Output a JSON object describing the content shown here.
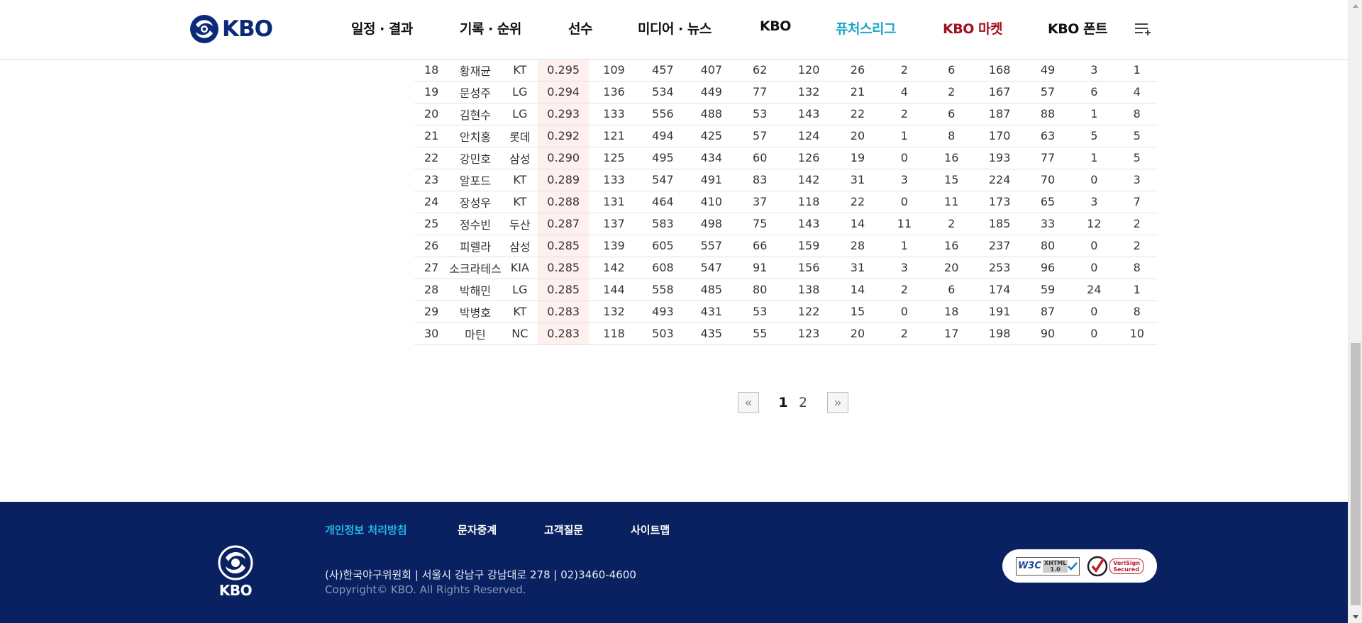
{
  "header": {
    "logo_text": "KBO",
    "nav": [
      {
        "label": "일정 · 결과"
      },
      {
        "label": "기록 · 순위"
      },
      {
        "label": "선수"
      },
      {
        "label": "미디어 · 뉴스"
      },
      {
        "label": "KBO"
      },
      {
        "label": "퓨처스리그"
      },
      {
        "label": "KBO 마켓"
      },
      {
        "label": "KBO 폰트"
      }
    ],
    "menu_icon": "menu-list-icon",
    "colors": {
      "futures": "#1aa5c9",
      "market": "#a0111d",
      "brand": "#0b2a78"
    }
  },
  "records": {
    "rows": [
      {
        "rank": "18",
        "name": "황재균",
        "team": "KT",
        "avg": "0.295",
        "g": "109",
        "pa": "457",
        "ab": "407",
        "r": "62",
        "h": "120",
        "b2": "26",
        "b3": "2",
        "hr": "6",
        "tb": "168",
        "rbi": "49",
        "sac": "3",
        "sf": "1"
      },
      {
        "rank": "19",
        "name": "문성주",
        "team": "LG",
        "avg": "0.294",
        "g": "136",
        "pa": "534",
        "ab": "449",
        "r": "77",
        "h": "132",
        "b2": "21",
        "b3": "4",
        "hr": "2",
        "tb": "167",
        "rbi": "57",
        "sac": "6",
        "sf": "4"
      },
      {
        "rank": "20",
        "name": "김현수",
        "team": "LG",
        "avg": "0.293",
        "g": "133",
        "pa": "556",
        "ab": "488",
        "r": "53",
        "h": "143",
        "b2": "22",
        "b3": "2",
        "hr": "6",
        "tb": "187",
        "rbi": "88",
        "sac": "1",
        "sf": "8"
      },
      {
        "rank": "21",
        "name": "안치홍",
        "team": "롯데",
        "avg": "0.292",
        "g": "121",
        "pa": "494",
        "ab": "425",
        "r": "57",
        "h": "124",
        "b2": "20",
        "b3": "1",
        "hr": "8",
        "tb": "170",
        "rbi": "63",
        "sac": "5",
        "sf": "5"
      },
      {
        "rank": "22",
        "name": "강민호",
        "team": "삼성",
        "avg": "0.290",
        "g": "125",
        "pa": "495",
        "ab": "434",
        "r": "60",
        "h": "126",
        "b2": "19",
        "b3": "0",
        "hr": "16",
        "tb": "193",
        "rbi": "77",
        "sac": "1",
        "sf": "5"
      },
      {
        "rank": "23",
        "name": "알포드",
        "team": "KT",
        "avg": "0.289",
        "g": "133",
        "pa": "547",
        "ab": "491",
        "r": "83",
        "h": "142",
        "b2": "31",
        "b3": "3",
        "hr": "15",
        "tb": "224",
        "rbi": "70",
        "sac": "0",
        "sf": "3"
      },
      {
        "rank": "24",
        "name": "장성우",
        "team": "KT",
        "avg": "0.288",
        "g": "131",
        "pa": "464",
        "ab": "410",
        "r": "37",
        "h": "118",
        "b2": "22",
        "b3": "0",
        "hr": "11",
        "tb": "173",
        "rbi": "65",
        "sac": "3",
        "sf": "7"
      },
      {
        "rank": "25",
        "name": "정수빈",
        "team": "두산",
        "avg": "0.287",
        "g": "137",
        "pa": "583",
        "ab": "498",
        "r": "75",
        "h": "143",
        "b2": "14",
        "b3": "11",
        "hr": "2",
        "tb": "185",
        "rbi": "33",
        "sac": "12",
        "sf": "2"
      },
      {
        "rank": "26",
        "name": "피렐라",
        "team": "삼성",
        "avg": "0.285",
        "g": "139",
        "pa": "605",
        "ab": "557",
        "r": "66",
        "h": "159",
        "b2": "28",
        "b3": "1",
        "hr": "16",
        "tb": "237",
        "rbi": "80",
        "sac": "0",
        "sf": "2"
      },
      {
        "rank": "27",
        "name": "소크라테스",
        "team": "KIA",
        "avg": "0.285",
        "g": "142",
        "pa": "608",
        "ab": "547",
        "r": "91",
        "h": "156",
        "b2": "31",
        "b3": "3",
        "hr": "20",
        "tb": "253",
        "rbi": "96",
        "sac": "0",
        "sf": "8"
      },
      {
        "rank": "28",
        "name": "박해민",
        "team": "LG",
        "avg": "0.285",
        "g": "144",
        "pa": "558",
        "ab": "485",
        "r": "80",
        "h": "138",
        "b2": "14",
        "b3": "2",
        "hr": "6",
        "tb": "174",
        "rbi": "59",
        "sac": "24",
        "sf": "1"
      },
      {
        "rank": "29",
        "name": "박병호",
        "team": "KT",
        "avg": "0.283",
        "g": "132",
        "pa": "493",
        "ab": "431",
        "r": "53",
        "h": "122",
        "b2": "15",
        "b3": "0",
        "hr": "18",
        "tb": "191",
        "rbi": "87",
        "sac": "0",
        "sf": "8"
      },
      {
        "rank": "30",
        "name": "마틴",
        "team": "NC",
        "avg": "0.283",
        "g": "118",
        "pa": "503",
        "ab": "435",
        "r": "55",
        "h": "123",
        "b2": "20",
        "b3": "2",
        "hr": "17",
        "tb": "198",
        "rbi": "90",
        "sac": "0",
        "sf": "10"
      }
    ],
    "avg_highlight_color": "#fdf0ee"
  },
  "pagination": {
    "prev_label": "«",
    "next_label": "»",
    "pages": [
      "1",
      "2"
    ],
    "current_page": "1"
  },
  "footer": {
    "links": [
      {
        "label": "개인정보 처리방침"
      },
      {
        "label": "문자중계"
      },
      {
        "label": "고객질문"
      },
      {
        "label": "사이트맵"
      }
    ],
    "logo_text": "KBO",
    "address": "(사)한국야구위원회 | 서울시 강남구 강남대로 278 | 02)3460-4600",
    "copyright": "Copyright© KBO. All Rights Reserved.",
    "badges": {
      "w3c": "W3C",
      "xhtml_top": "XHTML",
      "xhtml_version": "1.0",
      "verisign_top": "VeriSign",
      "verisign_bottom": "Secured"
    },
    "colors": {
      "background": "#0a2161",
      "privacy_link": "#23b8e8"
    }
  }
}
